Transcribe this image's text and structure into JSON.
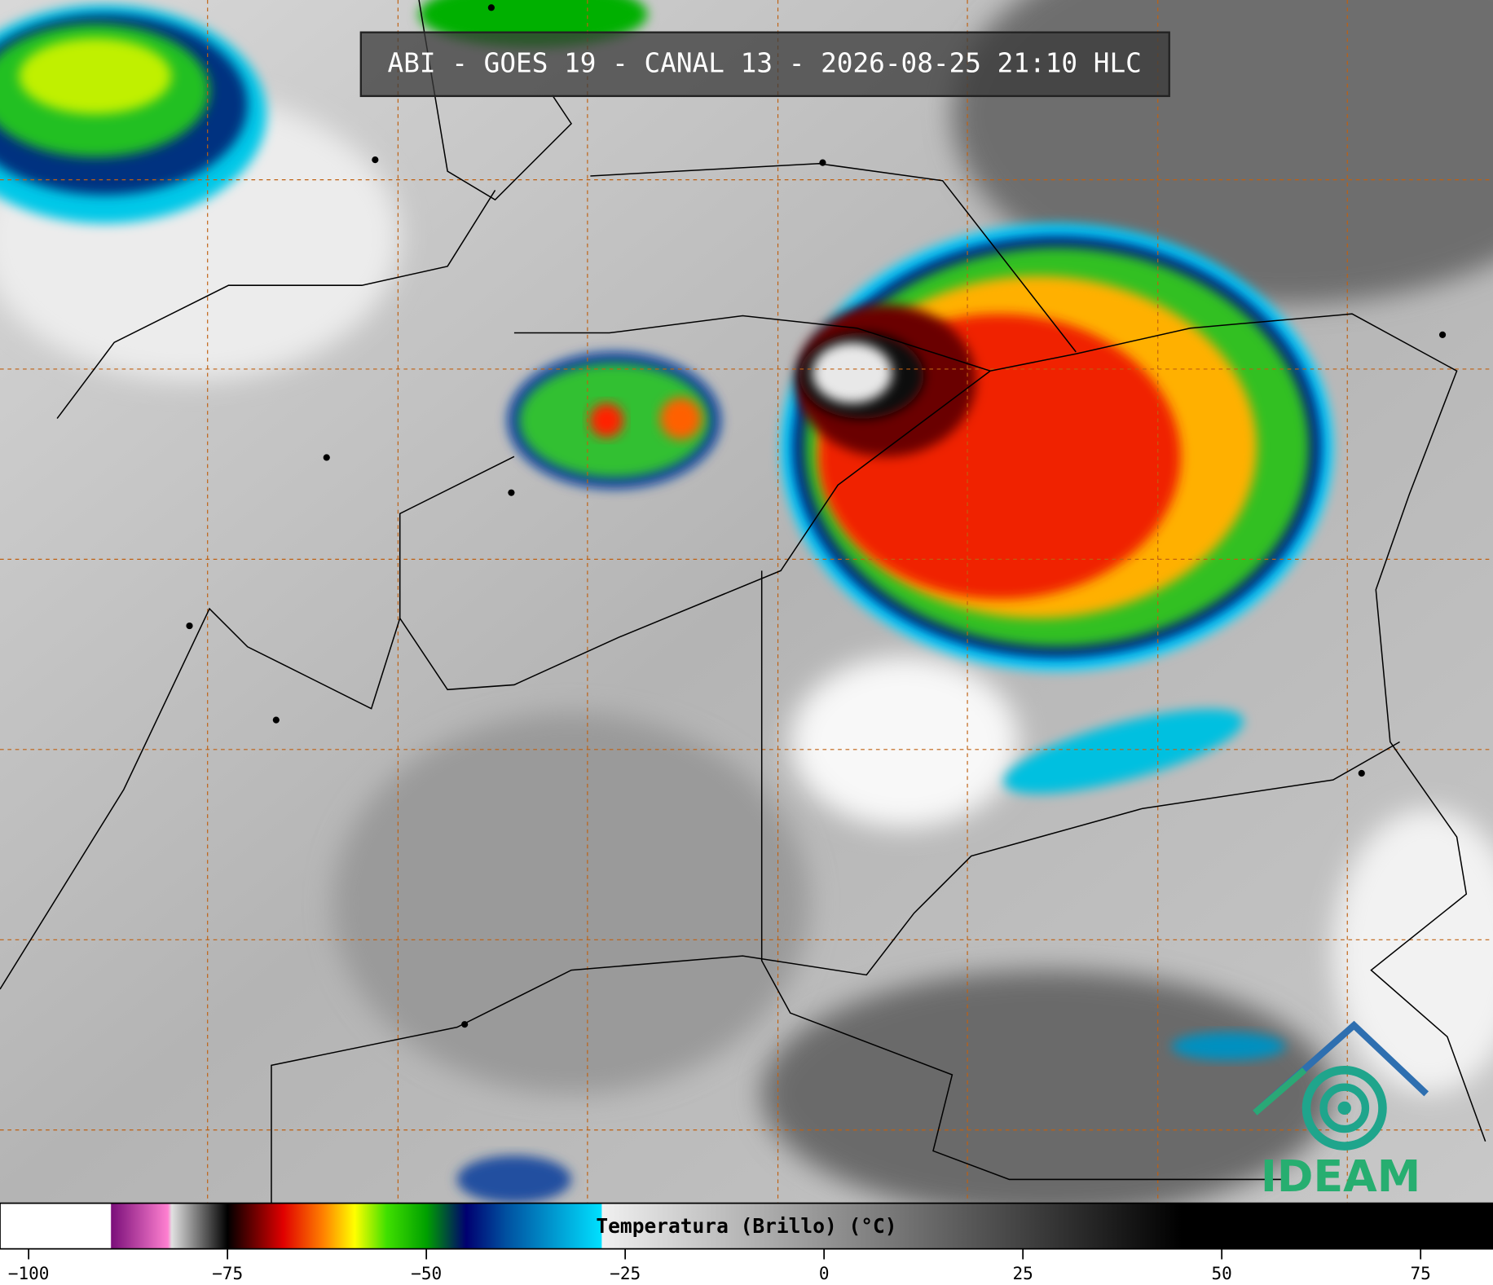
{
  "title": "ABI - GOES 19 - CANAL 13 - 2026-08-25 21:10 HLC",
  "logo": "IDEAM",
  "colorbar": {
    "label": "Temperatura (Brillo) (°C)",
    "xlim": [
      -103.6,
      84.1
    ],
    "xticks": [
      {
        "value": -100,
        "label": "−100"
      },
      {
        "value": -75,
        "label": "−75"
      },
      {
        "value": -50,
        "label": "−50"
      },
      {
        "value": -25,
        "label": "−25"
      },
      0,
      25,
      50,
      75
    ],
    "colormap": [
      {
        "value": -103.6,
        "color": "#ffffff"
      },
      {
        "value": -89.7,
        "color": "#ffffff"
      },
      {
        "value": -89.6,
        "color": "#7a0f7a"
      },
      {
        "value": -82.5,
        "color": "#ff80d0"
      },
      {
        "value": -82,
        "color": "#e0e0e0"
      },
      {
        "value": -75,
        "color": "#000000"
      },
      {
        "value": -72,
        "color": "#600000"
      },
      {
        "value": -68,
        "color": "#e00000"
      },
      {
        "value": -63,
        "color": "#ff8000"
      },
      {
        "value": -59,
        "color": "#ffff00"
      },
      {
        "value": -55,
        "color": "#40e000"
      },
      {
        "value": -50,
        "color": "#00a000"
      },
      {
        "value": -45,
        "color": "#000070"
      },
      {
        "value": -40,
        "color": "#0050a0"
      },
      {
        "value": -28,
        "color": "#00e0ff"
      },
      {
        "value": -27.9,
        "color": "#f0f0f0"
      },
      {
        "value": 45,
        "color": "#000000"
      },
      {
        "value": 84.1,
        "color": "#000000"
      }
    ]
  }
}
